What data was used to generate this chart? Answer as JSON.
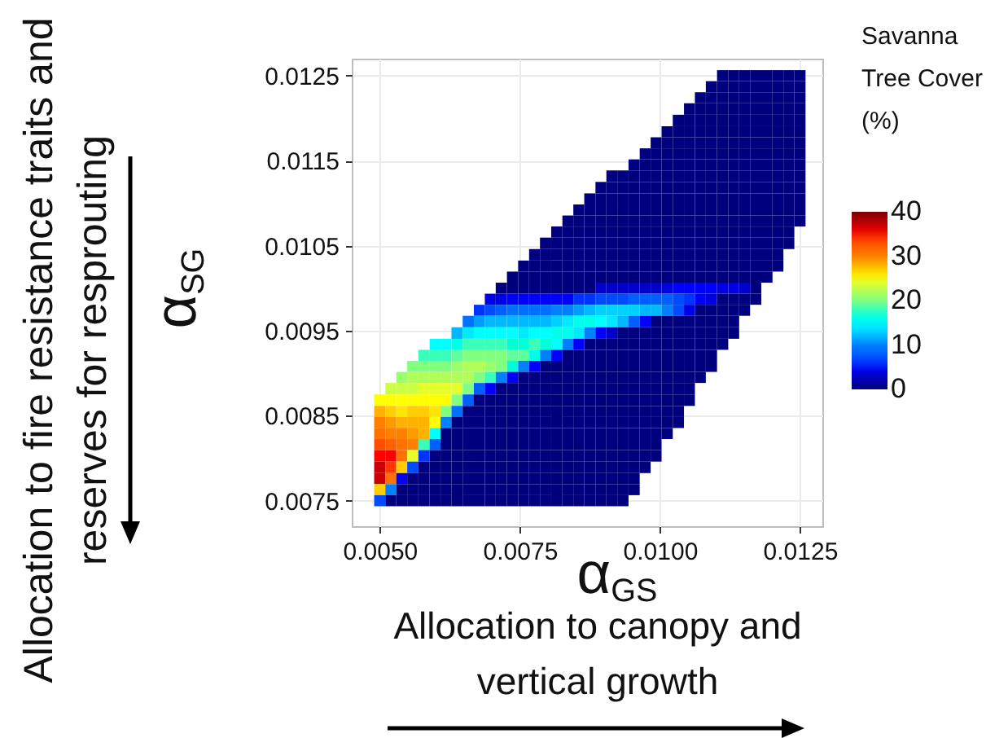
{
  "chart_data": {
    "type": "heatmap",
    "xlabel": "α$_{GS}$",
    "ylabel": "α$_{SG}$",
    "clabel": "Savanna Tree Cover (%)",
    "annotations": [
      "Allocation to fire resistance traits and reserves for resprouting",
      "Allocation to canopy and vertical growth"
    ],
    "x": [
      0.005,
      0.0052,
      0.00539,
      0.00559,
      0.00579,
      0.00599,
      0.00618,
      0.00638,
      0.00658,
      0.00678,
      0.00697,
      0.00717,
      0.00737,
      0.00757,
      0.00776,
      0.00796,
      0.00816,
      0.00836,
      0.00855,
      0.00875,
      0.00895,
      0.00914,
      0.00934,
      0.00954,
      0.00974,
      0.00993,
      0.01013,
      0.01033,
      0.01053,
      0.01072,
      0.01092,
      0.01112,
      0.01132,
      0.01151,
      0.01171,
      0.01191,
      0.01211,
      0.0123,
      0.0125
    ],
    "y": [
      0.0125,
      0.01237,
      0.01224,
      0.01211,
      0.01197,
      0.01184,
      0.01171,
      0.01158,
      0.01145,
      0.01132,
      0.01118,
      0.01105,
      0.01092,
      0.01079,
      0.01066,
      0.01053,
      0.01039,
      0.01026,
      0.01013,
      0.01,
      0.00987,
      0.00974,
      0.00961,
      0.00947,
      0.00934,
      0.00921,
      0.00908,
      0.00895,
      0.00882,
      0.00868,
      0.00855,
      0.00842,
      0.00829,
      0.00816,
      0.00803,
      0.00789,
      0.00776,
      0.00763,
      0.0075
    ],
    "cells": [
      [
        null,
        null,
        null,
        null,
        null,
        null,
        null,
        null,
        null,
        null,
        null,
        null,
        null,
        null,
        null,
        null,
        null,
        null,
        null,
        null,
        null,
        null,
        null,
        null,
        null,
        null,
        null,
        null,
        null,
        null,
        null,
        0,
        0,
        0,
        0,
        0,
        0,
        0,
        0
      ],
      [
        null,
        null,
        null,
        null,
        null,
        null,
        null,
        null,
        null,
        null,
        null,
        null,
        null,
        null,
        null,
        null,
        null,
        null,
        null,
        null,
        null,
        null,
        null,
        null,
        null,
        null,
        null,
        null,
        null,
        null,
        0,
        0,
        0,
        0,
        0,
        0,
        0,
        0,
        0
      ],
      [
        null,
        null,
        null,
        null,
        null,
        null,
        null,
        null,
        null,
        null,
        null,
        null,
        null,
        null,
        null,
        null,
        null,
        null,
        null,
        null,
        null,
        null,
        null,
        null,
        null,
        null,
        null,
        null,
        null,
        0,
        0,
        0,
        0,
        0,
        0,
        0,
        0,
        0,
        0
      ],
      [
        null,
        null,
        null,
        null,
        null,
        null,
        null,
        null,
        null,
        null,
        null,
        null,
        null,
        null,
        null,
        null,
        null,
        null,
        null,
        null,
        null,
        null,
        null,
        null,
        null,
        null,
        null,
        null,
        0,
        0,
        0,
        0,
        0,
        0,
        0,
        0,
        0,
        0,
        0
      ],
      [
        null,
        null,
        null,
        null,
        null,
        null,
        null,
        null,
        null,
        null,
        null,
        null,
        null,
        null,
        null,
        null,
        null,
        null,
        null,
        null,
        null,
        null,
        null,
        null,
        null,
        null,
        null,
        0,
        0,
        0,
        0,
        0,
        0,
        0,
        0,
        0,
        0,
        0,
        0
      ],
      [
        null,
        null,
        null,
        null,
        null,
        null,
        null,
        null,
        null,
        null,
        null,
        null,
        null,
        null,
        null,
        null,
        null,
        null,
        null,
        null,
        null,
        null,
        null,
        null,
        null,
        null,
        0,
        0,
        0,
        0,
        0,
        0,
        0,
        0,
        0,
        0,
        0,
        0,
        0
      ],
      [
        null,
        null,
        null,
        null,
        null,
        null,
        null,
        null,
        null,
        null,
        null,
        null,
        null,
        null,
        null,
        null,
        null,
        null,
        null,
        null,
        null,
        null,
        null,
        null,
        null,
        0,
        0,
        0,
        0,
        0,
        0,
        0,
        0,
        0,
        0,
        0,
        0,
        0,
        0
      ],
      [
        null,
        null,
        null,
        null,
        null,
        null,
        null,
        null,
        null,
        null,
        null,
        null,
        null,
        null,
        null,
        null,
        null,
        null,
        null,
        null,
        null,
        null,
        null,
        null,
        0,
        0,
        0,
        0,
        0,
        0,
        0,
        0,
        0,
        0,
        0,
        0,
        0,
        0,
        0
      ],
      [
        null,
        null,
        null,
        null,
        null,
        null,
        null,
        null,
        null,
        null,
        null,
        null,
        null,
        null,
        null,
        null,
        null,
        null,
        null,
        null,
        null,
        null,
        null,
        0,
        0,
        0,
        0,
        0,
        0,
        0,
        0,
        0,
        0,
        0,
        0,
        0,
        0,
        0,
        0
      ],
      [
        null,
        null,
        null,
        null,
        null,
        null,
        null,
        null,
        null,
        null,
        null,
        null,
        null,
        null,
        null,
        null,
        null,
        null,
        null,
        null,
        null,
        0,
        0,
        0,
        0,
        0,
        0,
        0,
        0,
        0,
        0,
        0,
        0,
        0,
        0,
        0,
        0,
        0,
        0
      ],
      [
        null,
        null,
        null,
        null,
        null,
        null,
        null,
        null,
        null,
        null,
        null,
        null,
        null,
        null,
        null,
        null,
        null,
        null,
        null,
        null,
        0,
        0,
        0,
        0,
        0,
        0,
        0,
        0,
        0,
        0,
        0,
        0,
        0,
        0,
        0,
        0,
        0,
        0,
        0
      ],
      [
        null,
        null,
        null,
        null,
        null,
        null,
        null,
        null,
        null,
        null,
        null,
        null,
        null,
        null,
        null,
        null,
        null,
        null,
        null,
        0,
        0,
        0,
        0,
        0,
        0,
        0,
        0,
        0,
        0,
        0,
        0,
        0,
        0,
        0,
        0,
        0,
        0,
        0,
        0
      ],
      [
        null,
        null,
        null,
        null,
        null,
        null,
        null,
        null,
        null,
        null,
        null,
        null,
        null,
        null,
        null,
        null,
        null,
        null,
        0,
        0,
        0,
        0,
        0,
        0,
        0,
        0,
        0,
        0,
        0,
        0,
        0,
        0,
        0,
        0,
        0,
        0,
        0,
        0,
        0
      ],
      [
        null,
        null,
        null,
        null,
        null,
        null,
        null,
        null,
        null,
        null,
        null,
        null,
        null,
        null,
        null,
        null,
        null,
        0,
        0,
        0,
        0,
        0,
        0,
        0,
        0,
        0,
        0,
        0,
        0,
        0,
        0,
        0,
        0,
        0,
        0,
        0,
        0,
        0,
        0
      ],
      [
        null,
        null,
        null,
        null,
        null,
        null,
        null,
        null,
        null,
        null,
        null,
        null,
        null,
        null,
        null,
        null,
        0,
        0,
        0,
        0,
        0,
        0,
        0,
        0,
        0,
        0,
        0,
        0,
        0,
        0,
        0,
        0,
        0,
        0,
        0,
        0,
        0,
        0,
        null
      ],
      [
        null,
        null,
        null,
        null,
        null,
        null,
        null,
        null,
        null,
        null,
        null,
        null,
        null,
        null,
        null,
        0,
        0,
        0,
        0,
        0,
        0,
        0,
        0,
        0,
        0,
        0,
        0,
        0,
        0,
        0,
        0,
        0,
        0,
        0,
        0,
        0,
        0,
        0,
        null
      ],
      [
        null,
        null,
        null,
        null,
        null,
        null,
        null,
        null,
        null,
        null,
        null,
        null,
        null,
        null,
        0,
        0,
        0,
        0,
        0,
        0,
        0,
        0,
        0,
        0,
        0,
        0,
        0,
        0,
        0,
        0,
        0,
        0,
        0,
        0,
        0,
        0,
        0,
        null,
        null
      ],
      [
        null,
        null,
        null,
        null,
        null,
        null,
        null,
        null,
        null,
        null,
        null,
        null,
        null,
        0,
        0,
        0,
        0,
        0,
        0,
        0,
        0,
        0,
        0,
        0,
        0,
        0,
        0,
        0,
        0,
        0,
        0,
        0,
        0,
        0,
        0,
        0,
        0,
        null,
        null
      ],
      [
        null,
        null,
        null,
        null,
        null,
        null,
        null,
        null,
        null,
        null,
        null,
        null,
        0,
        0,
        0,
        0,
        0,
        0,
        0,
        0,
        0,
        0,
        0,
        0,
        0,
        0,
        0,
        0,
        0,
        0,
        0,
        0,
        0,
        0,
        0,
        0,
        null,
        null,
        null
      ],
      [
        null,
        null,
        null,
        null,
        null,
        null,
        null,
        null,
        null,
        null,
        null,
        0,
        0,
        0,
        0,
        0,
        0,
        0,
        0,
        0,
        3,
        3,
        3,
        3,
        3,
        3,
        4,
        5,
        5,
        5,
        5,
        4,
        4,
        3,
        0,
        null,
        null,
        null,
        null
      ],
      [
        null,
        null,
        null,
        null,
        null,
        null,
        null,
        null,
        null,
        null,
        4,
        4,
        5,
        5,
        5,
        5,
        5,
        5,
        6,
        6,
        7,
        7,
        7,
        8,
        8,
        8,
        8,
        7,
        6,
        5,
        4,
        0,
        0,
        0,
        0,
        null,
        null,
        null,
        null
      ],
      [
        null,
        null,
        null,
        null,
        null,
        null,
        null,
        null,
        null,
        6,
        7,
        8,
        9,
        9,
        9,
        9,
        10,
        10,
        11,
        12,
        13,
        13,
        13,
        13,
        12,
        12,
        10,
        7,
        4,
        0,
        0,
        0,
        0,
        0,
        null,
        null,
        null,
        null,
        null
      ],
      [
        null,
        null,
        null,
        null,
        null,
        null,
        null,
        null,
        9,
        11,
        12,
        12,
        12,
        12,
        12,
        12,
        13,
        14,
        16,
        16,
        15,
        14,
        12,
        8,
        5,
        0,
        0,
        0,
        0,
        0,
        0,
        0,
        0,
        null,
        null,
        null,
        null,
        null,
        null
      ],
      [
        null,
        null,
        null,
        null,
        null,
        null,
        null,
        12,
        14,
        15,
        15,
        15,
        15,
        14,
        15,
        15,
        16,
        16,
        14,
        10,
        5,
        3,
        0,
        0,
        0,
        0,
        0,
        0,
        0,
        0,
        0,
        0,
        0,
        null,
        null,
        null,
        null,
        null,
        null
      ],
      [
        null,
        null,
        null,
        null,
        null,
        15,
        15,
        16,
        18,
        18,
        18,
        18,
        17,
        17,
        18,
        17,
        15,
        10,
        5,
        0,
        0,
        0,
        0,
        0,
        0,
        0,
        0,
        0,
        0,
        0,
        0,
        0,
        null,
        null,
        null,
        null,
        null,
        null,
        null
      ],
      [
        null,
        null,
        null,
        null,
        18,
        18,
        18,
        19,
        20,
        20,
        20,
        20,
        19,
        19,
        16,
        10,
        5,
        0,
        0,
        0,
        0,
        0,
        0,
        0,
        0,
        0,
        0,
        0,
        0,
        0,
        0,
        null,
        null,
        null,
        null,
        null,
        null,
        null,
        null
      ],
      [
        null,
        null,
        null,
        20,
        20,
        20,
        20,
        21,
        22,
        22,
        21,
        20,
        17,
        10,
        5,
        0,
        0,
        0,
        0,
        0,
        0,
        0,
        0,
        0,
        0,
        0,
        0,
        0,
        0,
        0,
        0,
        null,
        null,
        null,
        null,
        null,
        null,
        null,
        null
      ],
      [
        null,
        null,
        21,
        22,
        22,
        22,
        22,
        22,
        22,
        20,
        18,
        10,
        5,
        0,
        0,
        0,
        0,
        0,
        0,
        0,
        0,
        0,
        0,
        0,
        0,
        0,
        0,
        0,
        0,
        0,
        null,
        null,
        null,
        null,
        null,
        null,
        null,
        null,
        null
      ],
      [
        null,
        23,
        23,
        23,
        24,
        24,
        24,
        24,
        20,
        8,
        5,
        0,
        0,
        0,
        0,
        0,
        0,
        0,
        0,
        0,
        0,
        0,
        0,
        0,
        0,
        0,
        0,
        0,
        0,
        null,
        null,
        null,
        null,
        null,
        null,
        null,
        null,
        null,
        null
      ],
      [
        25,
        25,
        25,
        25,
        25,
        25,
        25,
        20,
        8,
        0,
        0,
        0,
        0,
        0,
        0,
        0,
        0,
        0,
        0,
        0,
        0,
        0,
        0,
        0,
        0,
        0,
        0,
        0,
        0,
        null,
        null,
        null,
        null,
        null,
        null,
        null,
        null,
        null,
        null
      ],
      [
        28,
        27,
        26,
        27,
        27,
        26,
        20,
        9,
        0,
        0,
        0,
        0,
        0,
        0,
        0,
        0,
        0,
        0,
        0,
        0,
        0,
        0,
        0,
        0,
        0,
        0,
        0,
        0,
        null,
        null,
        null,
        null,
        null,
        null,
        null,
        null,
        null,
        null,
        null
      ],
      [
        30,
        29,
        28,
        28,
        28,
        25,
        10,
        0,
        0,
        0,
        0,
        0,
        0,
        0,
        0,
        0,
        0,
        0,
        0,
        0,
        0,
        0,
        0,
        0,
        0,
        0,
        0,
        0,
        null,
        null,
        null,
        null,
        null,
        null,
        null,
        null,
        null,
        null,
        null
      ],
      [
        31,
        30,
        30,
        29,
        28,
        15,
        0,
        0,
        0,
        0,
        0,
        0,
        0,
        0,
        0,
        0,
        0,
        0,
        0,
        0,
        0,
        0,
        0,
        0,
        0,
        0,
        0,
        null,
        null,
        null,
        null,
        null,
        null,
        null,
        null,
        null,
        null,
        null,
        null
      ],
      [
        33,
        32,
        31,
        30,
        18,
        8,
        0,
        0,
        0,
        0,
        0,
        0,
        0,
        0,
        0,
        0,
        0,
        0,
        0,
        0,
        0,
        0,
        0,
        0,
        0,
        0,
        null,
        null,
        null,
        null,
        null,
        null,
        null,
        null,
        null,
        null,
        null,
        null,
        null
      ],
      [
        35,
        35,
        31,
        24,
        6,
        0,
        0,
        0,
        0,
        0,
        0,
        0,
        0,
        0,
        0,
        0,
        0,
        0,
        0,
        0,
        0,
        0,
        0,
        0,
        0,
        0,
        null,
        null,
        null,
        null,
        null,
        null,
        null,
        null,
        null,
        null,
        null,
        null,
        null
      ],
      [
        37,
        34,
        27,
        7,
        0,
        0,
        0,
        0,
        0,
        0,
        0,
        0,
        0,
        0,
        0,
        0,
        0,
        0,
        0,
        0,
        0,
        0,
        0,
        0,
        0,
        null,
        null,
        null,
        null,
        null,
        null,
        null,
        null,
        null,
        null,
        null,
        null,
        null,
        null
      ],
      [
        37,
        31,
        5,
        0,
        0,
        0,
        0,
        0,
        0,
        0,
        0,
        0,
        0,
        0,
        0,
        0,
        0,
        0,
        0,
        0,
        0,
        0,
        0,
        0,
        null,
        null,
        null,
        null,
        null,
        null,
        null,
        null,
        null,
        null,
        null,
        null,
        null,
        null,
        null
      ],
      [
        27,
        10,
        0,
        0,
        0,
        0,
        0,
        0,
        0,
        0,
        0,
        0,
        0,
        0,
        0,
        0,
        0,
        0,
        0,
        0,
        0,
        0,
        0,
        0,
        null,
        null,
        null,
        null,
        null,
        null,
        null,
        null,
        null,
        null,
        null,
        null,
        null,
        null,
        null
      ],
      [
        7,
        0,
        0,
        0,
        0,
        0,
        0,
        0,
        0,
        0,
        0,
        0,
        0,
        0,
        0,
        0,
        0,
        0,
        0,
        0,
        0,
        0,
        0,
        null,
        null,
        null,
        null,
        null,
        null,
        null,
        null,
        null,
        null,
        null,
        null,
        null,
        null,
        null,
        null
      ]
    ],
    "xlim": [
      0.0045,
      0.0129
    ],
    "ylim": [
      0.0072,
      0.0127
    ],
    "xticks": [
      {
        "value": 0.005,
        "label": "0.0050"
      },
      0.0075,
      {
        "value": 0.01,
        "label": "0.0100"
      },
      0.0125
    ],
    "yticks": [
      0.0075,
      0.0085,
      0.0095,
      0.0105,
      0.0115,
      0.0125
    ],
    "clim": [
      0,
      40
    ],
    "cticks": [
      0,
      10,
      20,
      30,
      40
    ],
    "grid": true
  }
}
